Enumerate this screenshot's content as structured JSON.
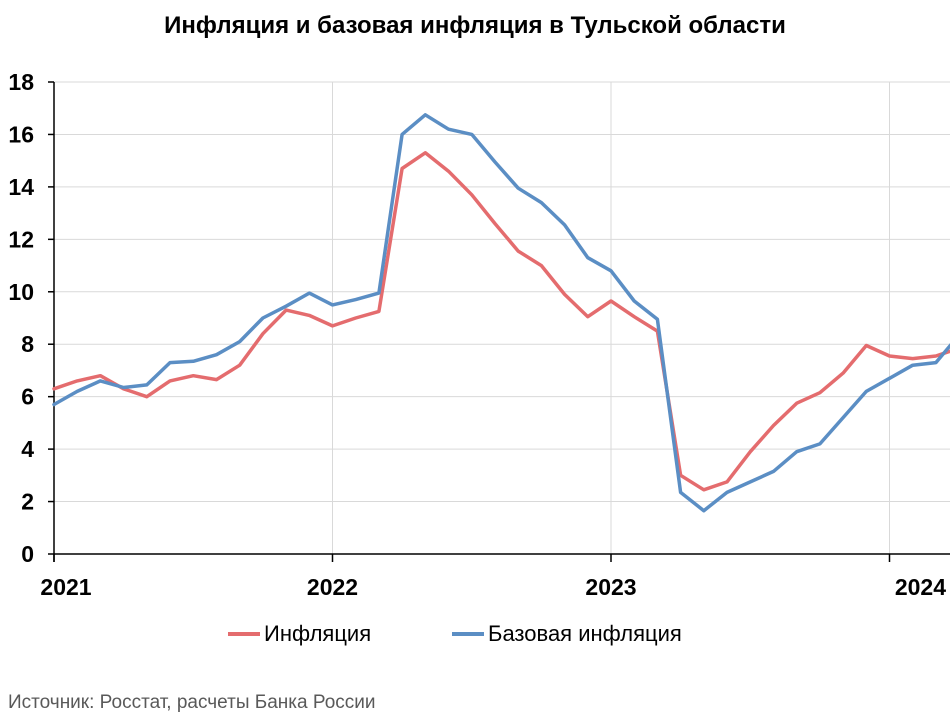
{
  "chart_data": {
    "type": "line",
    "title": "Инфляция и базовая инфляция в Тульской области",
    "xlabel": "",
    "ylabel": "",
    "x_ticks": [
      "2021",
      "2022",
      "2023",
      "2024"
    ],
    "ylim": [
      0,
      18
    ],
    "y_ticks": [
      "0",
      "2",
      "4",
      "6",
      "8",
      "10",
      "12",
      "14",
      "16",
      "18"
    ],
    "grid": true,
    "legend_position": "bottom",
    "x_dates": [
      "2021-01",
      "2021-02",
      "2021-03",
      "2021-04",
      "2021-05",
      "2021-06",
      "2021-07",
      "2021-08",
      "2021-09",
      "2021-10",
      "2021-11",
      "2021-12",
      "2022-01",
      "2022-02",
      "2022-03",
      "2022-04",
      "2022-05",
      "2022-06",
      "2022-07",
      "2022-08",
      "2022-09",
      "2022-10",
      "2022-11",
      "2022-12",
      "2023-01",
      "2023-02",
      "2023-03",
      "2023-04",
      "2023-05",
      "2023-06",
      "2023-07",
      "2023-08",
      "2023-09",
      "2023-10",
      "2023-11",
      "2023-12",
      "2024-01",
      "2024-02",
      "2024-03",
      "2024-04"
    ],
    "series": [
      {
        "name": "Инфляция",
        "color": "#e46c6e",
        "values": [
          6.3,
          6.6,
          6.8,
          6.3,
          6.0,
          6.6,
          6.8,
          6.65,
          7.2,
          8.4,
          9.3,
          9.1,
          8.7,
          9.0,
          9.25,
          14.7,
          15.3,
          14.6,
          13.7,
          12.6,
          11.55,
          11.0,
          9.9,
          9.05,
          9.65,
          9.05,
          8.5,
          3.0,
          2.45,
          2.75,
          3.9,
          4.9,
          5.75,
          6.15,
          6.9,
          7.95,
          7.55,
          7.45,
          7.55,
          7.85
        ]
      },
      {
        "name": "Базовая инфляция",
        "color": "#5b8ec4",
        "values": [
          5.7,
          6.2,
          6.6,
          6.35,
          6.45,
          7.3,
          7.35,
          7.6,
          8.1,
          9.0,
          9.45,
          9.95,
          9.5,
          9.7,
          9.95,
          16.0,
          16.75,
          16.2,
          16.0,
          14.95,
          13.95,
          13.4,
          12.55,
          11.3,
          10.8,
          9.65,
          8.95,
          2.35,
          1.65,
          2.35,
          2.75,
          3.15,
          3.9,
          4.2,
          5.2,
          6.2,
          6.7,
          7.2,
          7.3,
          8.35
        ]
      }
    ]
  },
  "source_text": "Источник: Росстат, расчеты Банка России"
}
